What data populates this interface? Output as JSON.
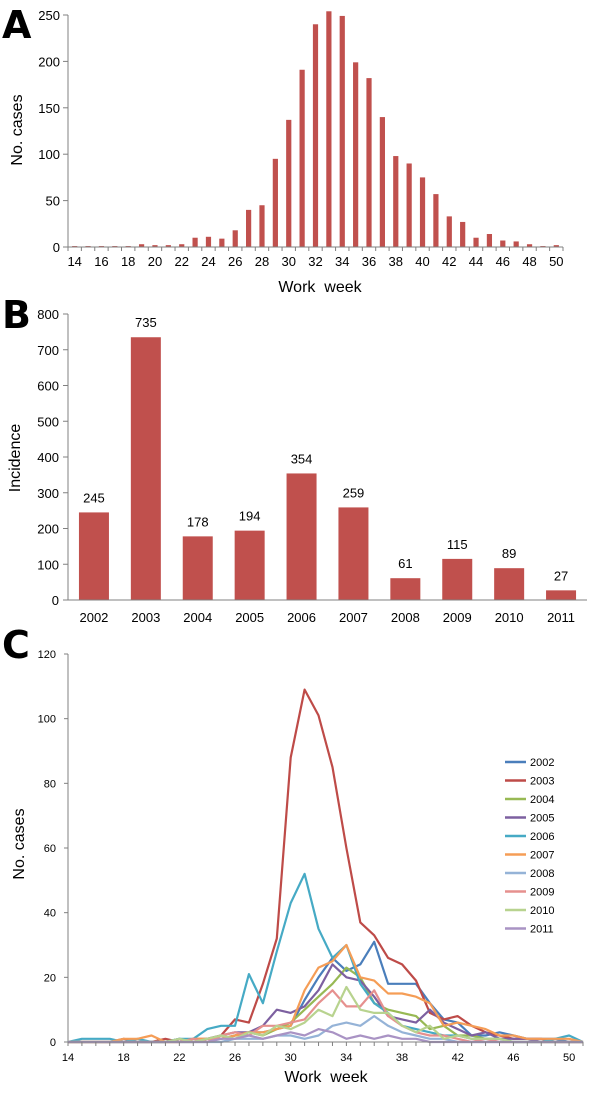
{
  "colors": {
    "bar": "#c0504d",
    "axis": "#808080"
  },
  "chart_data": [
    {
      "panel": "A",
      "type": "bar",
      "xlabel": "Work  week",
      "ylabel": "No. cases",
      "ylim": [
        0,
        250
      ],
      "yticks": [
        0,
        50,
        100,
        150,
        200,
        250
      ],
      "xtick_labels": [
        "14",
        "16",
        "18",
        "20",
        "22",
        "24",
        "26",
        "28",
        "30",
        "32",
        "34",
        "36",
        "38",
        "40",
        "42",
        "44",
        "46",
        "48",
        "50"
      ],
      "categories": [
        14,
        15,
        16,
        17,
        18,
        19,
        20,
        21,
        22,
        23,
        24,
        25,
        26,
        27,
        28,
        29,
        30,
        31,
        32,
        33,
        34,
        35,
        36,
        37,
        38,
        39,
        40,
        41,
        42,
        43,
        44,
        45,
        46,
        47,
        48,
        49,
        50
      ],
      "values": [
        1,
        1,
        1,
        1,
        1,
        3,
        2,
        2,
        3,
        10,
        11,
        9,
        18,
        40,
        45,
        95,
        137,
        191,
        240,
        254,
        249,
        199,
        182,
        140,
        98,
        90,
        75,
        57,
        33,
        27,
        10,
        14,
        7,
        6,
        3,
        1,
        2
      ]
    },
    {
      "panel": "B",
      "type": "bar",
      "xlabel": "",
      "ylabel": "Incidence",
      "ylim": [
        0,
        800
      ],
      "yticks": [
        0,
        100,
        200,
        300,
        400,
        500,
        600,
        700,
        800
      ],
      "categories": [
        "2002",
        "2003",
        "2004",
        "2005",
        "2006",
        "2007",
        "2008",
        "2009",
        "2010",
        "2011"
      ],
      "values": [
        245,
        735,
        178,
        194,
        354,
        259,
        61,
        115,
        89,
        27
      ],
      "data_labels": [
        "245",
        "735",
        "178",
        "194",
        "354",
        "259",
        "61",
        "115",
        "89",
        "27"
      ]
    },
    {
      "panel": "C",
      "type": "line",
      "xlabel": "Work  week",
      "ylabel": "No. cases",
      "ylim": [
        0,
        120
      ],
      "yticks": [
        0,
        20,
        40,
        60,
        80,
        100,
        120
      ],
      "xtick_labels": [
        "14",
        "18",
        "22",
        "26",
        "30",
        "34",
        "38",
        "42",
        "46",
        "50"
      ],
      "x": [
        14,
        15,
        16,
        17,
        18,
        19,
        20,
        21,
        22,
        23,
        24,
        25,
        26,
        27,
        28,
        29,
        30,
        31,
        32,
        33,
        34,
        35,
        36,
        37,
        38,
        39,
        40,
        41,
        42,
        43,
        44,
        45,
        46,
        47,
        48,
        49,
        50,
        51
      ],
      "legend_position": "right",
      "series": [
        {
          "name": "2002",
          "color": "#4a7ebb",
          "values": [
            0,
            0,
            0,
            0,
            0,
            0,
            0,
            0,
            1,
            0,
            1,
            1,
            2,
            3,
            3,
            4,
            5,
            13,
            20,
            26,
            22,
            24,
            31,
            18,
            18,
            18,
            12,
            7,
            6,
            2,
            2,
            3,
            2,
            1,
            1,
            1,
            0,
            0
          ]
        },
        {
          "name": "2003",
          "color": "#be4b48",
          "values": [
            0,
            0,
            0,
            0,
            1,
            0,
            0,
            1,
            0,
            1,
            1,
            2,
            7,
            6,
            18,
            32,
            88,
            109,
            101,
            85,
            60,
            37,
            33,
            26,
            24,
            19,
            9,
            7,
            8,
            5,
            3,
            2,
            1,
            1,
            1,
            0,
            0,
            0
          ]
        },
        {
          "name": "2004",
          "color": "#98b954",
          "values": [
            0,
            0,
            0,
            0,
            0,
            0,
            0,
            0,
            0,
            0,
            1,
            1,
            2,
            3,
            2,
            4,
            6,
            10,
            14,
            18,
            23,
            20,
            12,
            10,
            9,
            8,
            4,
            5,
            2,
            2,
            1,
            1,
            0,
            0,
            0,
            0,
            0,
            0
          ]
        },
        {
          "name": "2005",
          "color": "#7d60a0",
          "values": [
            0,
            0,
            0,
            0,
            0,
            0,
            0,
            0,
            1,
            0,
            1,
            2,
            3,
            3,
            5,
            10,
            9,
            11,
            16,
            24,
            20,
            19,
            14,
            8,
            7,
            6,
            10,
            6,
            4,
            2,
            3,
            1,
            1,
            1,
            0,
            0,
            0,
            0
          ]
        },
        {
          "name": "2006",
          "color": "#46aac5",
          "values": [
            0,
            1,
            1,
            1,
            0,
            1,
            0,
            0,
            1,
            1,
            4,
            5,
            5,
            21,
            12,
            28,
            43,
            52,
            35,
            26,
            30,
            18,
            12,
            9,
            5,
            4,
            3,
            2,
            2,
            1,
            1,
            1,
            0,
            0,
            0,
            1,
            2,
            0
          ]
        },
        {
          "name": "2007",
          "color": "#f59d56",
          "values": [
            0,
            0,
            0,
            0,
            1,
            1,
            2,
            0,
            0,
            1,
            1,
            1,
            2,
            3,
            3,
            4,
            5,
            16,
            23,
            25,
            30,
            20,
            19,
            15,
            15,
            14,
            12,
            5,
            6,
            5,
            4,
            2,
            2,
            1,
            1,
            1,
            1,
            0
          ]
        },
        {
          "name": "2008",
          "color": "#95b3d7",
          "values": [
            0,
            0,
            0,
            0,
            0,
            0,
            0,
            0,
            0,
            0,
            0,
            0,
            1,
            1,
            1,
            2,
            2,
            1,
            2,
            5,
            6,
            5,
            8,
            5,
            3,
            2,
            1,
            1,
            0,
            0,
            0,
            0,
            0,
            0,
            0,
            0,
            0,
            0
          ]
        },
        {
          "name": "2009",
          "color": "#e6908e",
          "values": [
            0,
            0,
            0,
            0,
            0,
            0,
            0,
            0,
            0,
            1,
            0,
            2,
            3,
            2,
            5,
            5,
            6,
            7,
            12,
            16,
            11,
            11,
            16,
            8,
            5,
            3,
            2,
            2,
            1,
            0,
            1,
            0,
            0,
            0,
            0,
            0,
            0,
            0
          ]
        },
        {
          "name": "2010",
          "color": "#b8d38f",
          "values": [
            0,
            0,
            0,
            0,
            0,
            0,
            0,
            0,
            1,
            0,
            1,
            2,
            1,
            3,
            2,
            5,
            4,
            6,
            10,
            8,
            17,
            10,
            9,
            9,
            5,
            3,
            5,
            1,
            2,
            1,
            1,
            1,
            0,
            0,
            0,
            0,
            0,
            0
          ]
        },
        {
          "name": "2011",
          "color": "#a993c4",
          "values": [
            0,
            0,
            0,
            0,
            0,
            0,
            0,
            0,
            0,
            0,
            0,
            1,
            1,
            2,
            1,
            2,
            3,
            2,
            4,
            3,
            1,
            2,
            1,
            2,
            1,
            1,
            0,
            0,
            0,
            0,
            0,
            0,
            0,
            0,
            0,
            0,
            0,
            0
          ]
        }
      ]
    }
  ]
}
